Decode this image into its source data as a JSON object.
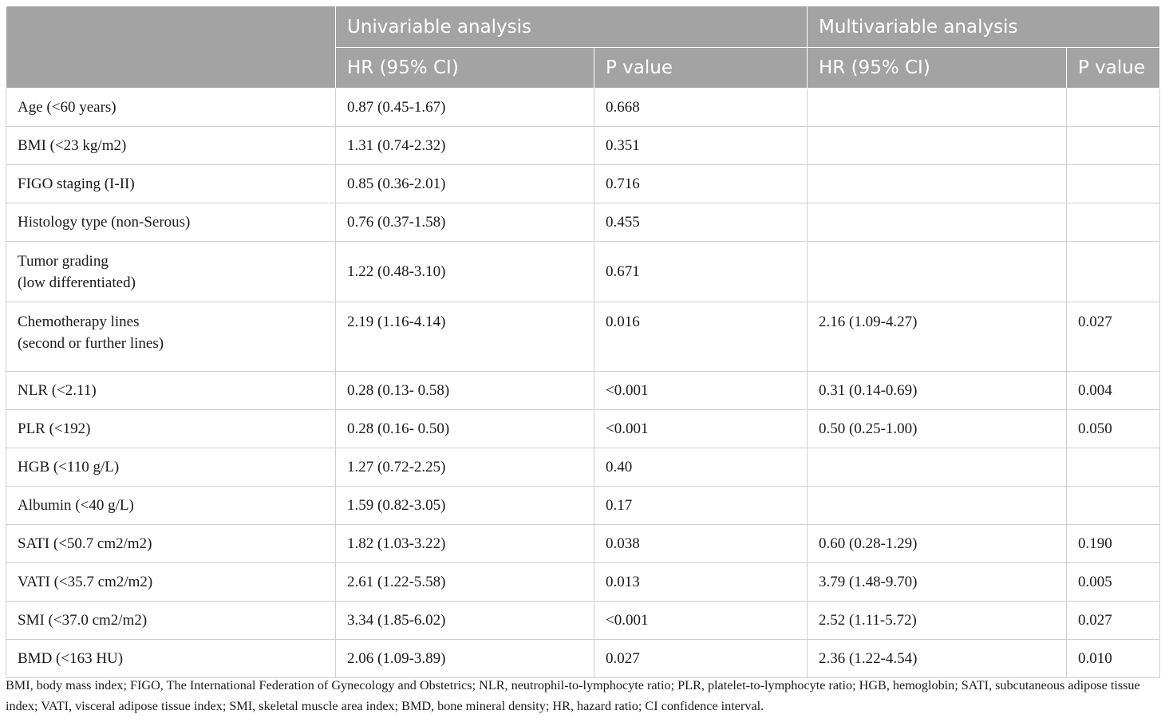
{
  "header": {
    "group_univariable": "Univariable analysis",
    "group_multivariable": "Multivariable analysis",
    "uni_hr": "HR (95% CI)",
    "uni_p": "P value",
    "multi_hr": "HR (95% CI)",
    "multi_p": "P value"
  },
  "rows": [
    {
      "label1": "Age (<60 years)",
      "label2": "",
      "uni_hr": "0.87 (0.45-1.67)",
      "uni_p": "0.668",
      "multi_hr": "",
      "multi_p": ""
    },
    {
      "label1": "BMI (<23 kg/m2)",
      "label2": "",
      "uni_hr": "1.31 (0.74-2.32)",
      "uni_p": "0.351",
      "multi_hr": "",
      "multi_p": ""
    },
    {
      "label1": "FIGO staging (I-II)",
      "label2": "",
      "uni_hr": "0.85 (0.36-2.01)",
      "uni_p": "0.716",
      "multi_hr": "",
      "multi_p": ""
    },
    {
      "label1": "Histology type (non-Serous)",
      "label2": "",
      "uni_hr": "0.76 (0.37-1.58)",
      "uni_p": "0.455",
      "multi_hr": "",
      "multi_p": ""
    },
    {
      "label1": "Tumor grading",
      "label2": "(low differentiated)",
      "uni_hr": "1.22 (0.48-3.10)",
      "uni_p": "0.671",
      "multi_hr": "",
      "multi_p": ""
    },
    {
      "label1": "Chemotherapy lines",
      "label2": "(second or further lines)",
      "uni_hr": "2.19 (1.16-4.14)",
      "uni_p": "0.016",
      "multi_hr": "2.16 (1.09-4.27)",
      "multi_p": "0.027"
    },
    {
      "label1": "NLR (<2.11)",
      "label2": "",
      "uni_hr": "0.28 (0.13- 0.58)",
      "uni_p": "<0.001",
      "multi_hr": "0.31 (0.14-0.69)",
      "multi_p": "0.004"
    },
    {
      "label1": "PLR (<192)",
      "label2": "",
      "uni_hr": "0.28 (0.16- 0.50)",
      "uni_p": "<0.001",
      "multi_hr": "0.50 (0.25-1.00)",
      "multi_p": "0.050"
    },
    {
      "label1": "HGB (<110 g/L)",
      "label2": "",
      "uni_hr": "1.27 (0.72-2.25)",
      "uni_p": "0.40",
      "multi_hr": "",
      "multi_p": ""
    },
    {
      "label1": "Albumin (<40 g/L)",
      "label2": "",
      "uni_hr": "1.59 (0.82-3.05)",
      "uni_p": "0.17",
      "multi_hr": "",
      "multi_p": ""
    },
    {
      "label1": "SATI (<50.7 cm2/m2)",
      "label2": "",
      "uni_hr": "1.82 (1.03-3.22)",
      "uni_p": "0.038",
      "multi_hr": "0.60 (0.28-1.29)",
      "multi_p": "0.190"
    },
    {
      "label1": "VATI (<35.7 cm2/m2)",
      "label2": "",
      "uni_hr": "2.61 (1.22-5.58)",
      "uni_p": "0.013",
      "multi_hr": "3.79 (1.48-9.70)",
      "multi_p": "0.005"
    },
    {
      "label1": "SMI (<37.0 cm2/m2)",
      "label2": "",
      "uni_hr": "3.34 (1.85-6.02)",
      "uni_p": "<0.001",
      "multi_hr": "2.52 (1.11-5.72)",
      "multi_p": "0.027"
    },
    {
      "label1": "BMD (<163 HU)",
      "label2": "",
      "uni_hr": "2.06 (1.09-3.89)",
      "uni_p": "0.027",
      "multi_hr": "2.36 (1.22-4.54)",
      "multi_p": "0.010"
    }
  ],
  "footnote": "BMI, body mass index; FIGO, The International Federation of Gynecology and Obstetrics; NLR, neutrophil-to-lymphocyte ratio; PLR, platelet-to-lymphocyte ratio; HGB, hemoglobin; SATI, subcutaneous adipose tissue index; VATI, visceral adipose tissue index; SMI, skeletal muscle area index; BMD, bone mineral density; HR, hazard ratio; CI confidence interval.",
  "colors": {
    "header_bg": "#a3a3a3",
    "header_text": "#ffffff",
    "grid": "#cfcfcf"
  }
}
